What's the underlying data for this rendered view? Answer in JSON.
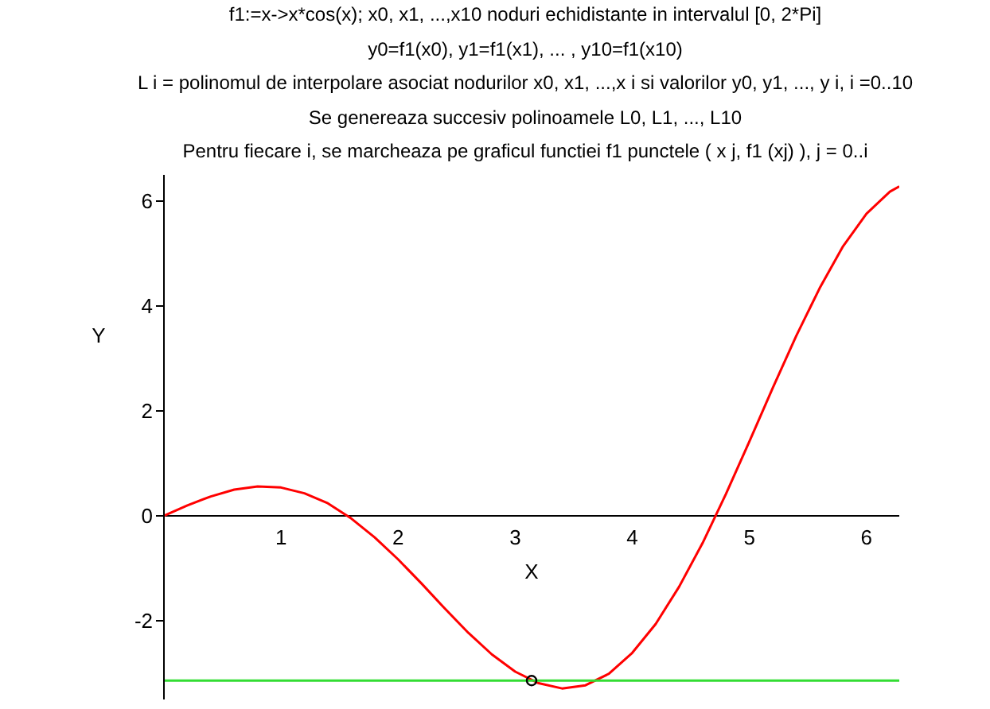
{
  "chart_data": {
    "type": "line",
    "title": "f1:=x->x*cos(x); x0,  x1,  ...,x10 noduri echidistante in intervalul [0, 2*Pi]",
    "subtitle": "y0=f1(x0), y1=f1(x1), ... , y10=f1(x10)",
    "annotations": [
      "L i = polinomul de interpolare asociat nodurilor x0,  x1,  ...,x i si valorilor y0,  y1,  ..., y i,  i =0..10",
      "Se genereaza succesiv polinoamele L0, L1, ..., L10",
      "Pentru fiecare i, se marcheaza pe graficul functiei f1 punctele ( x j, f1 (xj) ),  j = 0..i"
    ],
    "xlabel": "X",
    "ylabel": "Y",
    "xlim": [
      0,
      6.28
    ],
    "ylim": [
      -3.5,
      6.5
    ],
    "xticks": [
      1,
      2,
      3,
      4,
      5,
      6
    ],
    "yticks": [
      -2,
      0,
      2,
      4,
      6
    ],
    "marker": "none",
    "line_style": "solid",
    "series": [
      {
        "color": "#ff0000",
        "x": [
          0,
          0.2,
          0.4,
          0.6,
          0.8,
          1.0,
          1.2,
          1.4,
          1.6,
          1.8,
          2.0,
          2.2,
          2.4,
          2.6,
          2.8,
          3.0,
          3.2,
          3.4,
          3.6,
          3.8,
          4.0,
          4.2,
          4.4,
          4.6,
          4.8,
          5.0,
          5.2,
          5.4,
          5.6,
          5.8,
          6.0,
          6.2,
          6.28
        ],
        "values": [
          0,
          0.2,
          0.37,
          0.5,
          0.56,
          0.54,
          0.43,
          0.24,
          -0.05,
          -0.41,
          -0.83,
          -1.29,
          -1.77,
          -2.23,
          -2.64,
          -2.97,
          -3.19,
          -3.29,
          -3.23,
          -3.01,
          -2.61,
          -2.06,
          -1.35,
          -0.52,
          0.42,
          1.42,
          2.44,
          3.43,
          4.34,
          5.14,
          5.76,
          6.18,
          6.28
        ]
      },
      {
        "color": "#33dd33",
        "x": [
          0,
          6.28
        ],
        "values": [
          -3.14,
          -3.14
        ]
      },
      {
        "type": "scatter",
        "color": "#000000",
        "marker": "circle",
        "x": [
          3.14
        ],
        "values": [
          -3.14
        ]
      }
    ]
  }
}
